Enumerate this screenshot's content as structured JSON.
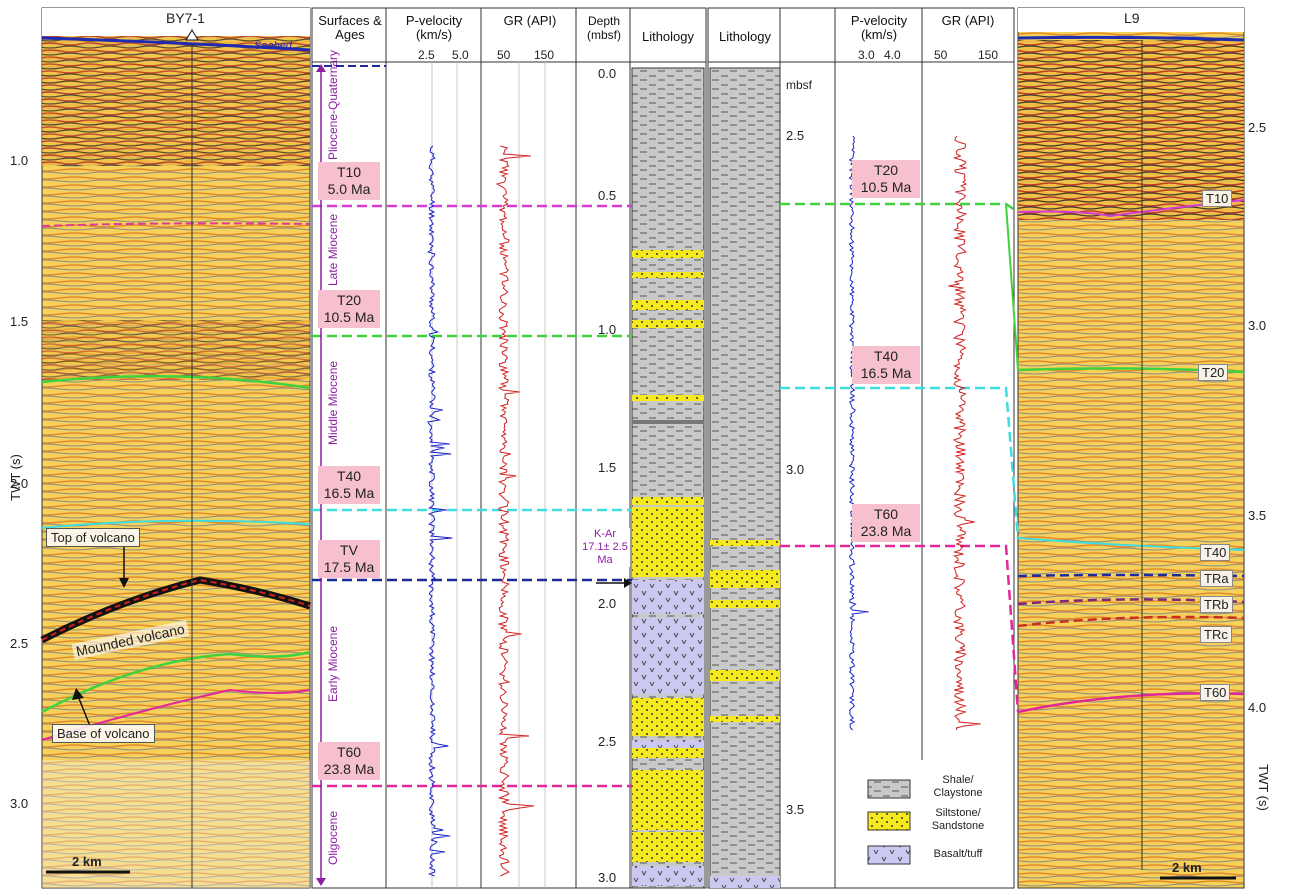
{
  "left_section": {
    "well_name": "BY7-1",
    "seabed_label": "Seabed",
    "axis_title": "TWT (s)",
    "axis_ticks": [
      "1.0",
      "1.5",
      "2.0",
      "2.5",
      "3.0"
    ],
    "annotations": [
      "Top of volcano",
      "Mounded volcano",
      "Base of volcano"
    ],
    "scale_bar": "2 km"
  },
  "columns": {
    "surfaces_header": "Surfaces & Ages",
    "pvel_header": "P-velocity (km/s)",
    "pvel_ticks": [
      "2.5",
      "5.0"
    ],
    "gr_header": "GR (API)",
    "gr_ticks": [
      "50",
      "150"
    ],
    "depth_header": "Depth (mbsf)",
    "depth_ticks": [
      "0.0",
      "0.5",
      "1.0",
      "1.5",
      "2.0",
      "2.5",
      "3.0"
    ],
    "lithology_header": "Lithology",
    "kar_note": "K-Ar 17.1± 2.5 Ma"
  },
  "surfaces": [
    {
      "name": "T10",
      "age": "5.0 Ma"
    },
    {
      "name": "T20",
      "age": "10.5 Ma"
    },
    {
      "name": "T40",
      "age": "16.5 Ma"
    },
    {
      "name": "TV",
      "age": "17.5 Ma"
    },
    {
      "name": "T60",
      "age": "23.8 Ma"
    }
  ],
  "epochs": [
    "Pliocene-Quaternary",
    "Late Miocene",
    "Middle Miocene",
    "Early Miocene",
    "Oligocene"
  ],
  "right_well": {
    "lithology_header": "Lithology",
    "depth_unit": "mbsf",
    "depth_ticks": [
      "2.5",
      "3.0",
      "3.5"
    ],
    "pvel_header": "P-velocity (km/s)",
    "pvel_ticks": [
      "3.0",
      "4.0"
    ],
    "gr_header": "GR (API)",
    "gr_ticks": [
      "50",
      "150"
    ],
    "surfaces": [
      {
        "name": "T20",
        "age": "10.5 Ma"
      },
      {
        "name": "T40",
        "age": "16.5 Ma"
      },
      {
        "name": "T60",
        "age": "23.8 Ma"
      }
    ]
  },
  "legend": [
    {
      "label": "Shale/ Claystone",
      "pattern": "shale"
    },
    {
      "label": "Siltstone/ Sandstone",
      "pattern": "sand"
    },
    {
      "label": "Basalt/tuff",
      "pattern": "basalt"
    }
  ],
  "right_section": {
    "line_name": "L9",
    "axis_title": "TWT (s)",
    "axis_ticks": [
      "2.5",
      "3.0",
      "3.5",
      "4.0"
    ],
    "horizons": [
      "T10",
      "T20",
      "T40",
      "TRa",
      "TRb",
      "TRc",
      "T60"
    ],
    "scale_bar": "2 km"
  },
  "colors": {
    "T10": "#d63bd6",
    "T20": "#3fd23f",
    "T40": "#3fdce0",
    "TV": "#1d2a9a",
    "T60": "#e0289a",
    "pvel": "#1a22c8",
    "gr": "#d12020",
    "sand": "#f6ea20",
    "shale": "#c8c8c8",
    "basalt": "#c9c6f0",
    "seismic": "#f4cf52"
  }
}
